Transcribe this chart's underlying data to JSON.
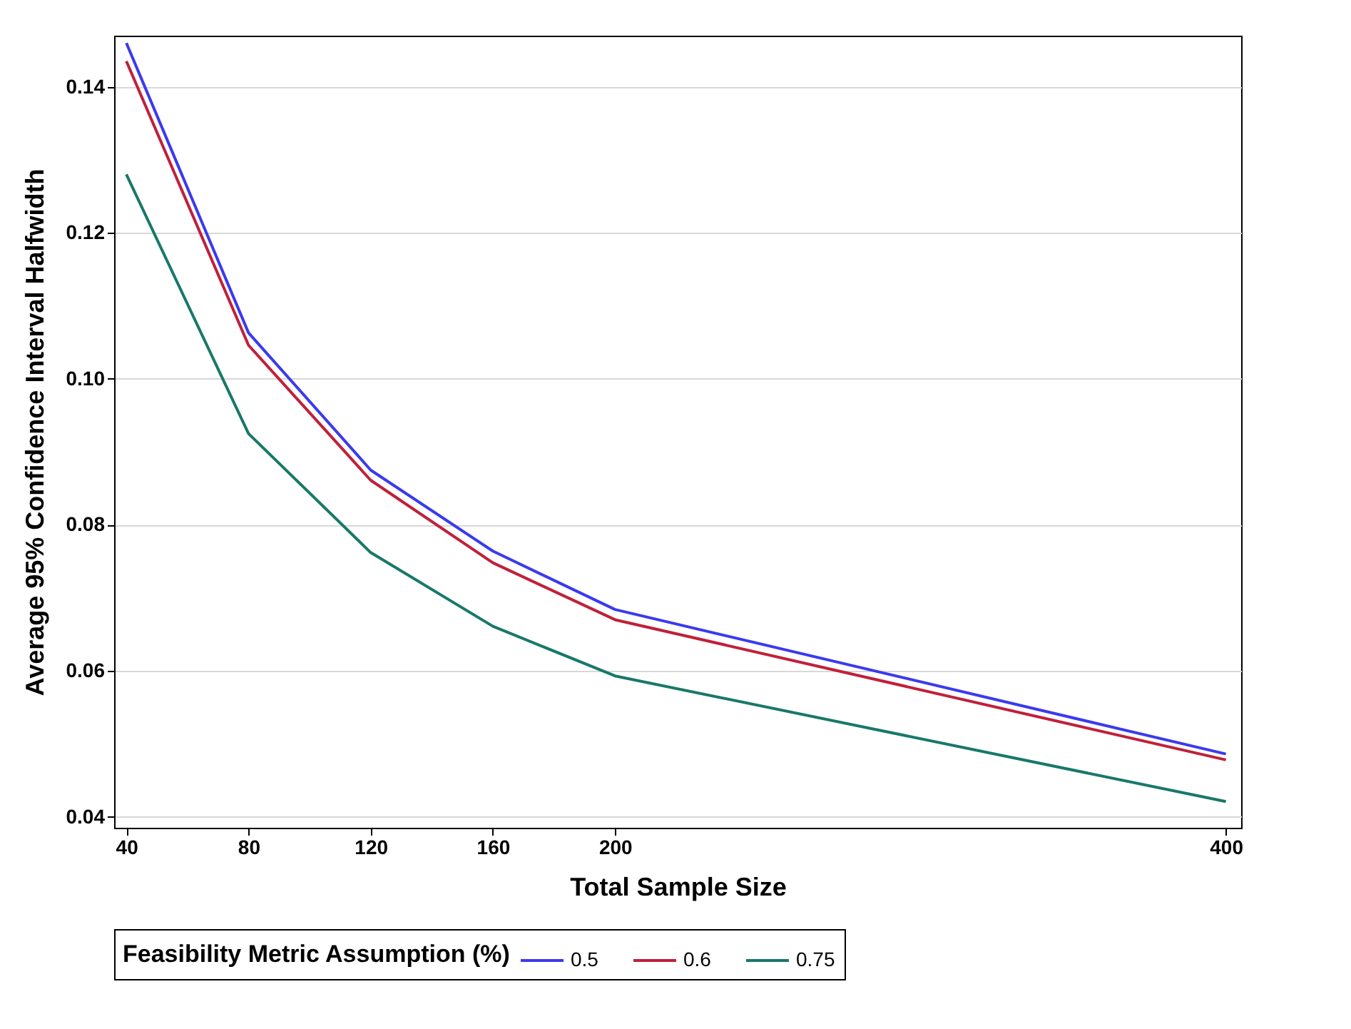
{
  "chart_data": {
    "type": "line",
    "xlabel": "Total Sample Size",
    "ylabel": "Average 95% Confidence Interval Halfwidth",
    "legend_title": "Feasibility Metric Assumption (%)",
    "x": [
      40,
      80,
      120,
      160,
      200,
      400
    ],
    "series": [
      {
        "name": "0.5",
        "color": "#3a3af0",
        "values": [
          0.146,
          0.1063,
          0.0875,
          0.0764,
          0.0684,
          0.0486
        ]
      },
      {
        "name": "0.6",
        "color": "#c0203a",
        "values": [
          0.1435,
          0.1046,
          0.0861,
          0.0748,
          0.067,
          0.0478
        ]
      },
      {
        "name": "0.75",
        "color": "#18786a",
        "values": [
          0.128,
          0.0925,
          0.0762,
          0.0661,
          0.0593,
          0.0421
        ]
      }
    ],
    "xlim": [
      36,
      405
    ],
    "xticks": [
      40,
      80,
      120,
      160,
      200,
      400
    ],
    "ylim": [
      0.0385,
      0.147
    ],
    "yticks": [
      0.04,
      0.06,
      0.08,
      {
        "value": 0.1,
        "label": "0.10"
      },
      0.12,
      0.14
    ],
    "grid": "y",
    "legend": "bottom",
    "line_style": "solid"
  }
}
